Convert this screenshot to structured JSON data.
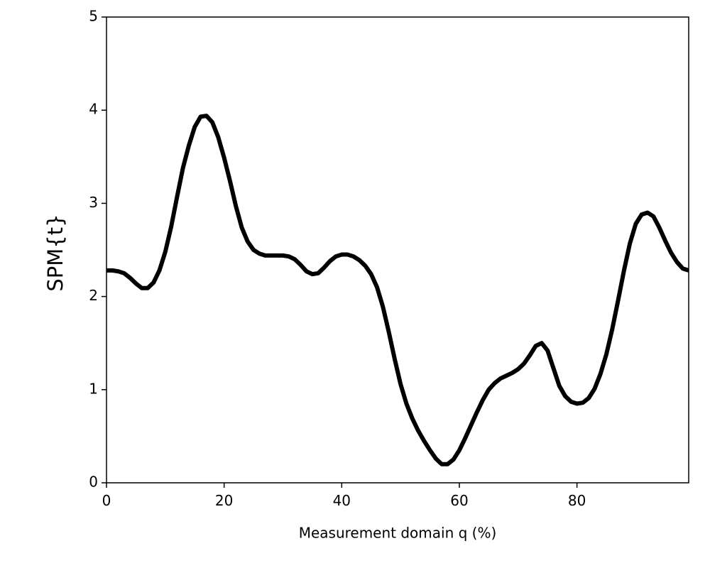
{
  "chart_data": {
    "type": "line",
    "xlabel": "Measurement domain q  (%)",
    "ylabel": "SPM{t}",
    "x": [
      0,
      1,
      2,
      3,
      4,
      5,
      6,
      7,
      8,
      9,
      10,
      11,
      12,
      13,
      14,
      15,
      16,
      17,
      18,
      19,
      20,
      21,
      22,
      23,
      24,
      25,
      26,
      27,
      28,
      29,
      30,
      31,
      32,
      33,
      34,
      35,
      36,
      37,
      38,
      39,
      40,
      41,
      42,
      43,
      44,
      45,
      46,
      47,
      48,
      49,
      50,
      51,
      52,
      53,
      54,
      55,
      56,
      57,
      58,
      59,
      60,
      61,
      62,
      63,
      64,
      65,
      66,
      67,
      68,
      69,
      70,
      71,
      72,
      73,
      74,
      75,
      76,
      77,
      78,
      79,
      80,
      81,
      82,
      83,
      84,
      85,
      86,
      87,
      88,
      89,
      90,
      91,
      92,
      93,
      94,
      95,
      96,
      97,
      98,
      99
    ],
    "series": [
      {
        "color": "#000000",
        "values": [
          2.28,
          2.28,
          2.27,
          2.25,
          2.2,
          2.14,
          2.09,
          2.09,
          2.15,
          2.28,
          2.48,
          2.75,
          3.07,
          3.38,
          3.62,
          3.82,
          3.93,
          3.94,
          3.87,
          3.71,
          3.49,
          3.24,
          2.97,
          2.74,
          2.59,
          2.5,
          2.46,
          2.44,
          2.44,
          2.44,
          2.44,
          2.43,
          2.4,
          2.34,
          2.27,
          2.24,
          2.25,
          2.31,
          2.38,
          2.43,
          2.45,
          2.45,
          2.43,
          2.39,
          2.33,
          2.24,
          2.1,
          1.89,
          1.62,
          1.33,
          1.06,
          0.85,
          0.69,
          0.56,
          0.45,
          0.35,
          0.26,
          0.2,
          0.2,
          0.25,
          0.35,
          0.48,
          0.62,
          0.76,
          0.89,
          1.0,
          1.07,
          1.12,
          1.15,
          1.18,
          1.22,
          1.28,
          1.37,
          1.47,
          1.5,
          1.42,
          1.23,
          1.04,
          0.93,
          0.87,
          0.85,
          0.86,
          0.91,
          1.01,
          1.17,
          1.38,
          1.65,
          1.96,
          2.28,
          2.57,
          2.78,
          2.88,
          2.9,
          2.86,
          2.74,
          2.6,
          2.47,
          2.37,
          2.3,
          2.28
        ]
      }
    ],
    "xlim": [
      0,
      99
    ],
    "xticks": [
      0,
      20,
      40,
      60,
      80
    ],
    "ylim": [
      0,
      5
    ],
    "yticks": [
      0,
      1,
      2,
      3,
      4,
      5
    ]
  }
}
